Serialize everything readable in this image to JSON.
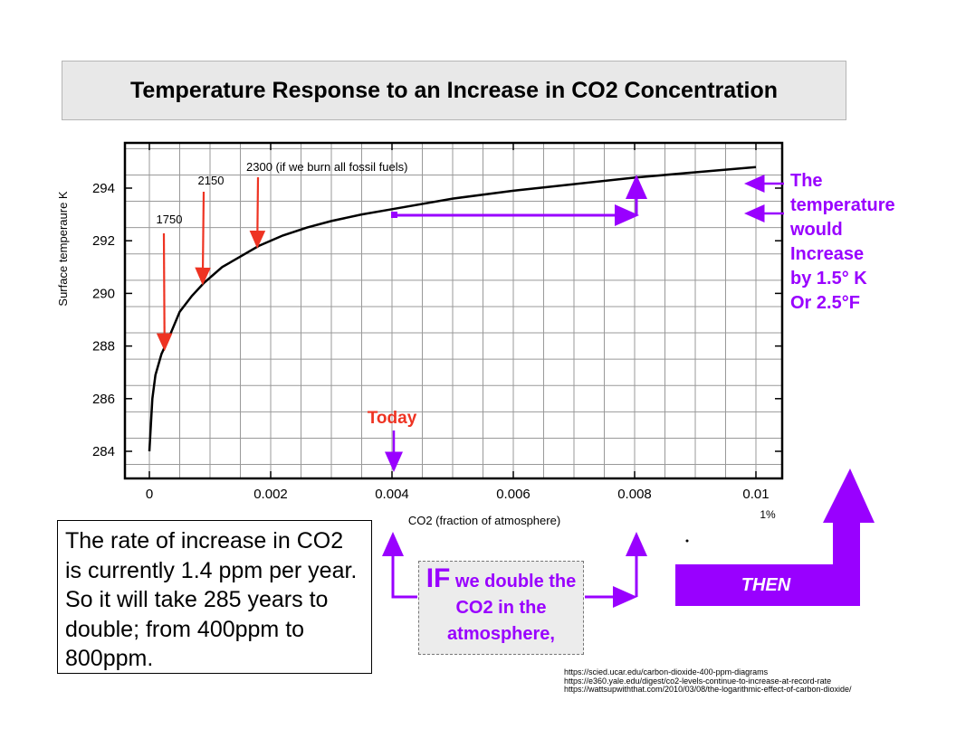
{
  "title": "Temperature Response to an Increase in CO2 Concentration",
  "chart_data": {
    "type": "line",
    "title": "",
    "xlabel": "CO2 (fraction of atmosphere)",
    "ylabel": "Surface temperaure K",
    "xlim": [
      -0.0008,
      0.0101
    ],
    "ylim": [
      283.1,
      295.6
    ],
    "x_ticks": [
      0,
      0.002,
      0.004,
      0.006,
      0.008,
      0.01
    ],
    "x_tick_labels": [
      "0",
      "0.002",
      "0.004",
      "0.006",
      "0.008",
      "0.01"
    ],
    "x_extra_label": "1%",
    "y_ticks": [
      284,
      286,
      288,
      290,
      292,
      294
    ],
    "y_tick_labels": [
      "284",
      "286",
      "288",
      "290",
      "292",
      "294"
    ],
    "grid": true,
    "series": [
      {
        "x": [
          0,
          5e-05,
          0.0001,
          0.0002,
          0.0003,
          0.0005,
          0.0007,
          0.0009,
          0.0012,
          0.0015,
          0.0018,
          0.0022,
          0.0026,
          0.003,
          0.0035,
          0.004,
          0.005,
          0.006,
          0.007,
          0.008,
          0.009,
          0.01
        ],
        "y": [
          284.0,
          286.0,
          286.9,
          287.7,
          288.2,
          289.3,
          289.9,
          290.4,
          291.0,
          291.4,
          291.8,
          292.2,
          292.5,
          292.75,
          293.0,
          293.2,
          293.6,
          293.9,
          294.15,
          294.4,
          294.6,
          294.8
        ]
      }
    ],
    "annotations": [
      {
        "text": "1750",
        "x": 0.00025,
        "y": 287.9,
        "color": "#ee3322"
      },
      {
        "text": "2150",
        "x": 0.00088,
        "y": 290.4,
        "color": "#ee3322"
      },
      {
        "text": "2300 (if we burn all fossil fuels)",
        "x": 0.00178,
        "y": 291.8,
        "color": "#ee3322"
      },
      {
        "text": "Today",
        "x": 0.004,
        "y": 284.3,
        "color": "#ee3322"
      }
    ]
  },
  "temp_text": [
    "The",
    "temperature",
    "would",
    "Increase",
    "by 1.5° K",
    "Or 2.5°F"
  ],
  "note_text": "The rate of increase in CO2 is currently 1.4 ppm per year.  So it will take 285 years to double; from 400ppm to 800ppm.",
  "if_box": {
    "big": "IF",
    "rest": " we double the CO2 in the atmosphere,"
  },
  "then_label": "THEN",
  "sources": [
    "https://scied.ucar.edu/carbon-dioxide-400-ppm-diagrams",
    "https://e360.yale.edu/digest/co2-levels-continue-to-increase-at-record-rate",
    "https://wattsupwiththat.com/2010/03/08/the-logarithmic-effect-of-carbon-dioxide/"
  ],
  "colors": {
    "purple": "#9900ff",
    "red": "#ee3322",
    "grid": "#999999"
  }
}
